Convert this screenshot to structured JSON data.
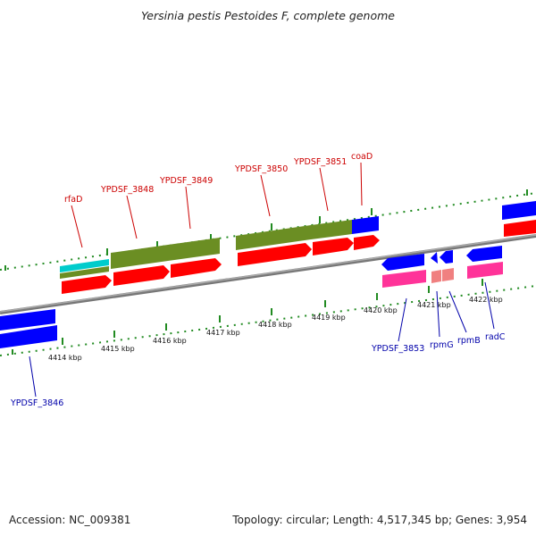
{
  "title": "Yersinia pestis Pestoides F, complete genome",
  "footer": {
    "accession": "Accession: NC_009381",
    "summary": "Topology: circular; Length: 4,517,345 bp; Genes: 3,954"
  },
  "scale": {
    "ticks": [
      "4414 kbp",
      "4415 kbp",
      "4416 kbp",
      "4417 kbp",
      "4418 kbp",
      "4419 kbp",
      "4420 kbp",
      "4421 kbp",
      "4422 kbp"
    ]
  },
  "colors": {
    "forward_label": "#cc0000",
    "reverse_label": "#0000aa",
    "cds": "#ff0000",
    "gene_forward": "#6b8e23",
    "gene_reverse": "#0000ff",
    "trna": "#00cccc",
    "rrna_like": "#ff3399",
    "pseudo": "#f08080",
    "dash": "#228b22",
    "backbone": "#888888"
  },
  "genes": {
    "forward": [
      "rfaD",
      "YPDSF_3848",
      "YPDSF_3849",
      "YPDSF_3850",
      "YPDSF_3851",
      "coaD"
    ],
    "reverse": [
      "YPDSF_3846",
      "YPDSF_3853",
      "rpmG",
      "rpmB",
      "radC"
    ]
  }
}
